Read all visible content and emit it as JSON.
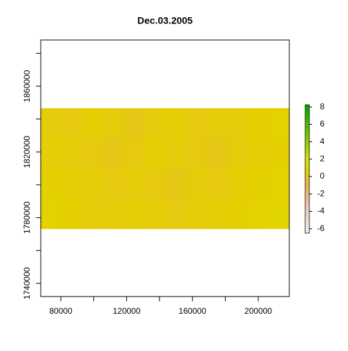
{
  "chart_data": {
    "type": "raster",
    "title": "Dec.03.2005",
    "xlim": [
      67800,
      218900
    ],
    "ylim": [
      1732000,
      1888100
    ],
    "xticks": [
      80000,
      {
        "value": 100000,
        "label": null
      },
      120000,
      {
        "value": 140000,
        "label": null
      },
      160000,
      {
        "value": 180000,
        "label": null
      },
      200000
    ],
    "yticks": [
      1740000,
      {
        "value": 1760000,
        "label": null
      },
      1780000,
      {
        "value": 1800000,
        "label": null
      },
      1820000,
      {
        "value": 1840000,
        "label": null
      },
      1860000,
      {
        "value": 1880000,
        "label": null
      }
    ],
    "raster_xlim": [
      67800,
      218900
    ],
    "raster_ylim": [
      1773300,
      1846600
    ],
    "grid_values": [
      [
        0.3,
        0.2,
        0.4,
        0.3,
        0.1,
        0.3,
        0.4,
        0.2,
        0.3,
        0.3,
        0.5,
        0.6
      ],
      [
        0.4,
        0.3,
        0.2,
        0.1,
        0.2,
        0.4,
        0.3,
        0.2,
        0.1,
        0.3,
        0.4,
        0.5
      ],
      [
        0.5,
        0.4,
        0.3,
        0.2,
        0.3,
        0.2,
        0.1,
        0.3,
        0.2,
        0.4,
        0.5,
        0.7
      ],
      [
        0.6,
        0.5,
        0.3,
        0.3,
        0.4,
        0.3,
        0.2,
        0.3,
        0.4,
        0.5,
        0.6,
        0.8
      ]
    ],
    "zlim": [
      -6.5,
      8.25
    ],
    "zticks": [
      -6,
      -4,
      -2,
      0,
      2,
      4,
      6,
      8
    ],
    "colormap": [
      [
        -6.5,
        "#f2f2f2"
      ],
      [
        -3,
        "#ecc3a8"
      ],
      [
        -1,
        "#e8b250"
      ],
      [
        0.5,
        "#e4d000"
      ],
      [
        2,
        "#d6e400"
      ],
      [
        8.25,
        "#00a600"
      ]
    ]
  }
}
